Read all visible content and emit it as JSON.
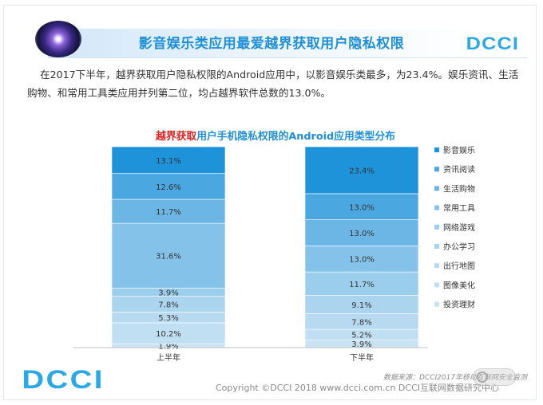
{
  "header": {
    "title": "影音娱乐类应用最爱越界获取用户隐私权限",
    "logo_text": "DCCI"
  },
  "intro_text": "在2017下半年，越界获取用户隐私权限的Android应用中，以影音娱乐类最多，为23.4%。娱乐资讯、生活购物、和常用工具类应用并列第二位，均占越界软件总数的13.0%。",
  "chart_title": {
    "part1": "越界获取",
    "part2": "用户手机隐私权限的Android应用类型分布"
  },
  "chart_data": {
    "type": "bar",
    "stacked": true,
    "percent_stacked": true,
    "title": "越界获取用户手机隐私权限的Android应用类型分布",
    "categories": [
      "上半年",
      "下半年"
    ],
    "series": [
      {
        "name": "投资理财",
        "values": [
          1.9,
          3.9
        ],
        "color": "#c9e3f3"
      },
      {
        "name": "图像美化",
        "values": [
          10.2,
          5.2
        ],
        "color": "#c1dff2"
      },
      {
        "name": "出行地图",
        "values": [
          5.3,
          7.8
        ],
        "color": "#b7daf1"
      },
      {
        "name": "办公学习",
        "values": [
          7.8,
          9.1
        ],
        "color": "#abd4ef"
      },
      {
        "name": "网络游戏",
        "values": [
          3.9,
          11.7
        ],
        "color": "#9bcdec"
      },
      {
        "name": "常用工具",
        "values": [
          31.6,
          13.0
        ],
        "color": "#85c2e9"
      },
      {
        "name": "生活购物",
        "values": [
          11.7,
          13.0
        ],
        "color": "#6cb6e5"
      },
      {
        "name": "资讯阅读",
        "values": [
          12.6,
          13.0
        ],
        "color": "#4aa7e0"
      },
      {
        "name": "影音娱乐",
        "values": [
          13.1,
          23.4
        ],
        "color": "#1e93d9"
      }
    ],
    "legend_order": [
      "影音娱乐",
      "资讯阅读",
      "生活购物",
      "常用工具",
      "网络游戏",
      "办公学习",
      "出行地图",
      "图像美化",
      "投资理财"
    ],
    "legend_position": "right",
    "value_suffix": "%",
    "ylim": [
      0,
      100
    ]
  },
  "footer": {
    "source": "数据来源：DCCI2017年移动互联网安全监测",
    "copyright": "Copyright ©DCCI 2018  www.dcci.com.cn   DCCI互联网数据研究中心",
    "logo_text": "DCCI"
  }
}
